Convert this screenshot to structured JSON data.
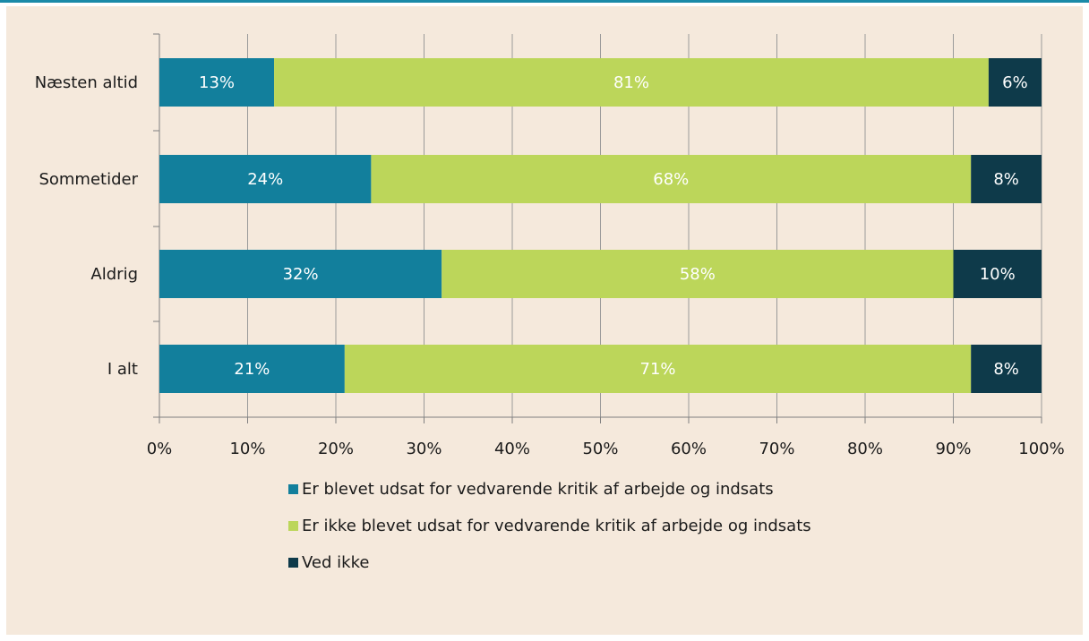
{
  "chart_data": {
    "type": "bar",
    "orientation": "horizontal",
    "stacked": true,
    "categories": [
      "Næsten altid",
      "Sommetider",
      "Aldrig",
      "I alt"
    ],
    "series": [
      {
        "name": "Er blevet udsat for vedvarende kritik af arbejde og indsats",
        "color": "#127f9c",
        "values": [
          13,
          24,
          32,
          21
        ]
      },
      {
        "name": "Er ikke blevet udsat for vedvarende kritik af arbejde og indsats",
        "color": "#bcd65a",
        "values": [
          81,
          68,
          58,
          71
        ]
      },
      {
        "name": "Ved ikke",
        "color": "#0e3a4a",
        "values": [
          6,
          8,
          10,
          8
        ]
      }
    ],
    "data_labels": [
      [
        "13%",
        "24%",
        "32%",
        "21%"
      ],
      [
        "81%",
        "68%",
        "58%",
        "71%"
      ],
      [
        "6%",
        "8%",
        "10%",
        "8%"
      ]
    ],
    "x_ticks": [
      "0%",
      "10%",
      "20%",
      "30%",
      "40%",
      "50%",
      "60%",
      "70%",
      "80%",
      "90%",
      "100%"
    ],
    "xlim": [
      0,
      100
    ],
    "grid": true,
    "legend_position": "bottom",
    "title": "",
    "xlabel": "",
    "ylabel": ""
  },
  "colors": {
    "background": "#f5e9dc",
    "accent_line": "#1a8aa8",
    "gridline": "#9a9a9a",
    "axis": "#808080",
    "label_light": "#ffffff",
    "label_dark": "#1a1a1a"
  }
}
